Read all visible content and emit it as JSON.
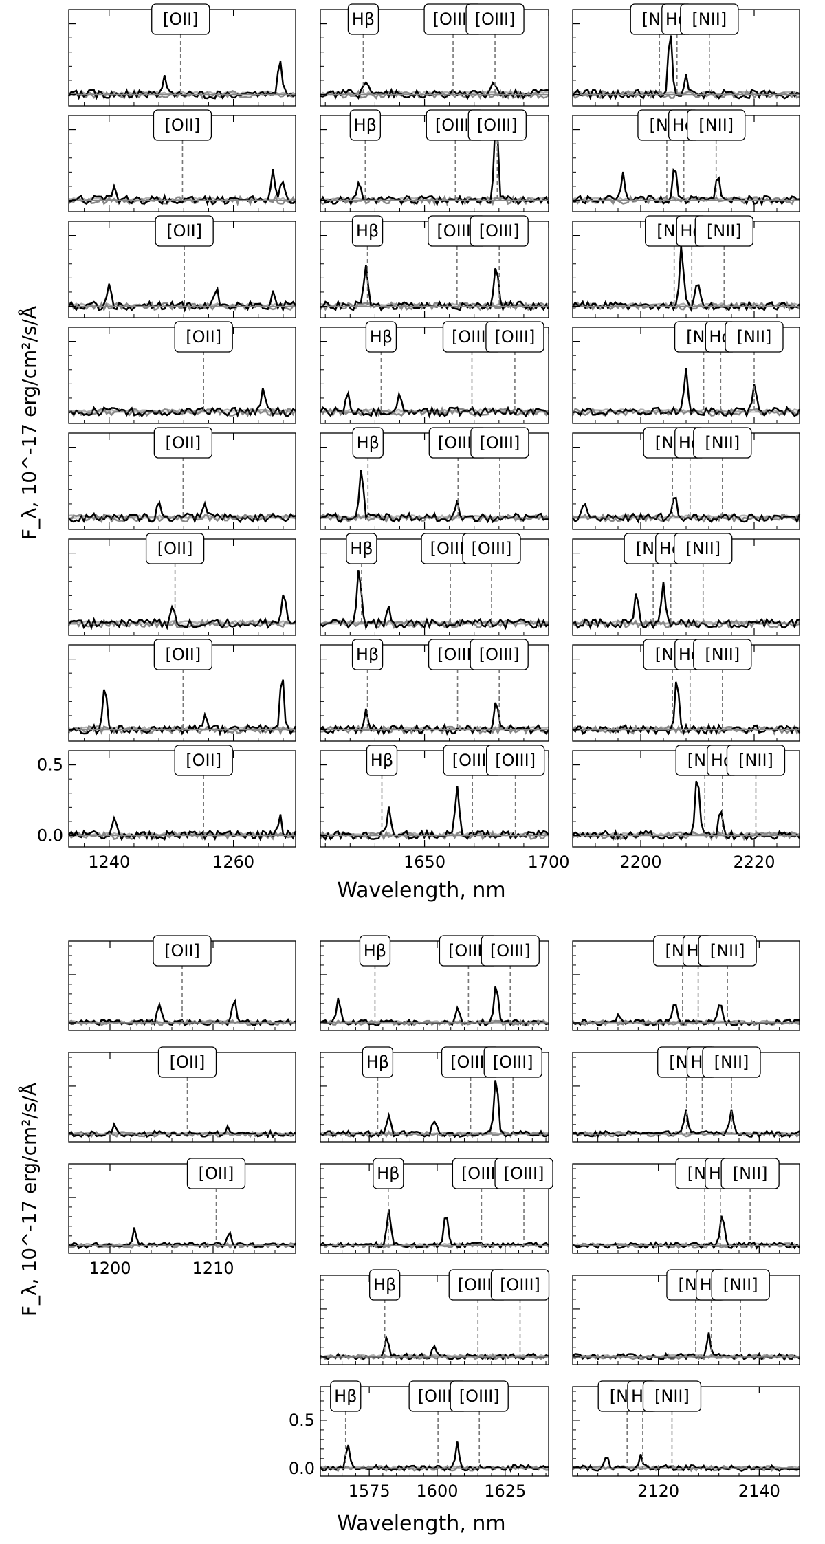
{
  "figure": {
    "ylabel": "F_λ, 10^-17 erg/cm²/s/Å",
    "xlabel": "Wavelength, nm"
  },
  "chart_data": [
    {
      "type": "line",
      "block": "top",
      "rows": 8,
      "ylabel": "F_λ, 10^-17 erg/cm²/s/Å",
      "xlabel": "Wavelength, nm",
      "yticks": [
        "0.0",
        "0.5"
      ],
      "ylim": [
        -0.08,
        0.6
      ],
      "columns": [
        {
          "name": "OII",
          "xlim": [
            1233.5,
            1270
          ],
          "xticks": [
            1240,
            1260
          ],
          "lines": [
            {
              "label": "[OII]"
            }
          ],
          "line_positions": [
            1251.5,
            1251.8,
            1252.1,
            1255.2,
            1251.9,
            1250.6,
            1251.9,
            1255.2
          ]
        },
        {
          "name": "Hb-OIII",
          "xlim": [
            1608,
            1700
          ],
          "xticks": [
            1650,
            1700
          ],
          "lines": [
            {
              "label": "Hβ"
            },
            {
              "label": "[OIII]"
            },
            {
              "label": "[OIII]"
            }
          ],
          "line_positions": [
            [
              1625.3,
              1661.5,
              1678.4
            ],
            [
              1626.1,
              1662.4,
              1679.3
            ],
            [
              1627.0,
              1663.1,
              1680.1
            ],
            [
              1632.5,
              1669.1,
              1686.4
            ],
            [
              1627.2,
              1663.5,
              1680.3
            ],
            [
              1624.6,
              1660.4,
              1677.0
            ],
            [
              1627.0,
              1663.3,
              1680.1
            ],
            [
              1632.8,
              1669.3,
              1686.6
            ]
          ]
        },
        {
          "name": "Ha-NII",
          "xlim": [
            2188,
            2228
          ],
          "xticks": [
            2200,
            2220
          ],
          "lines": [
            {
              "label": "[NII]"
            },
            {
              "label": "Hα"
            },
            {
              "label": "[NII]"
            }
          ],
          "line_positions": [
            [
              2203.3,
              2206.4,
              2212.1
            ],
            [
              2204.6,
              2207.6,
              2213.3
            ],
            [
              2205.9,
              2209.0,
              2214.7
            ],
            [
              2211.1,
              2214.1,
              2220.0
            ],
            [
              2205.6,
              2208.7,
              2214.4
            ],
            [
              2202.2,
              2205.3,
              2211.0
            ],
            [
              2205.6,
              2208.7,
              2214.4
            ],
            [
              2211.3,
              2214.4,
              2220.3
            ]
          ]
        }
      ]
    },
    {
      "type": "line",
      "block": "bottom",
      "rows": 5,
      "ylabel": "F_λ, 10^-17 erg/cm²/s/Å",
      "xlabel": "Wavelength, nm",
      "yticks": [
        "0.0",
        "0.5"
      ],
      "ylim": [
        -0.08,
        0.85
      ],
      "columns": [
        {
          "name": "OII",
          "xlim": [
            1196,
            1218
          ],
          "xticks": [
            1200,
            1210
          ],
          "lines": [
            {
              "label": "[OII]"
            }
          ],
          "line_positions": [
            1207.0,
            1207.5,
            1210.3,
            null,
            null
          ]
        },
        {
          "name": "Hb-OIII",
          "xlim": [
            1557,
            1641
          ],
          "xticks": [
            1575,
            1600,
            1625
          ],
          "lines": [
            {
              "label": "Hβ"
            },
            {
              "label": "[OIII]"
            },
            {
              "label": "[OIII]"
            }
          ],
          "line_positions": [
            [
              1577.1,
              1611.5,
              1626.9
            ],
            [
              1578.1,
              1612.3,
              1627.9
            ],
            [
              1582.0,
              1616.3,
              1631.9
            ],
            [
              1580.7,
              1615.0,
              1630.5
            ],
            [
              1566.3,
              1600.3,
              1615.5
            ]
          ]
        },
        {
          "name": "Ha-NII",
          "xlim": [
            2103,
            2148
          ],
          "xticks": [
            2120,
            2140
          ],
          "lines": [
            {
              "label": "[NII]"
            },
            {
              "label": "Hα"
            },
            {
              "label": "[NII]"
            }
          ],
          "line_positions": [
            [
              2124.8,
              2127.9,
              2133.7
            ],
            [
              2125.6,
              2128.7,
              2134.5
            ],
            [
              2129.2,
              2132.3,
              2138.2
            ],
            [
              2127.4,
              2130.5,
              2136.3
            ],
            [
              2113.8,
              2116.9,
              2122.7
            ]
          ]
        }
      ]
    }
  ],
  "colors": {
    "spectrum": "#000000",
    "model": "#888888",
    "model_light": "#b0b0b0",
    "marker": "#777777",
    "frame": "#000000"
  }
}
